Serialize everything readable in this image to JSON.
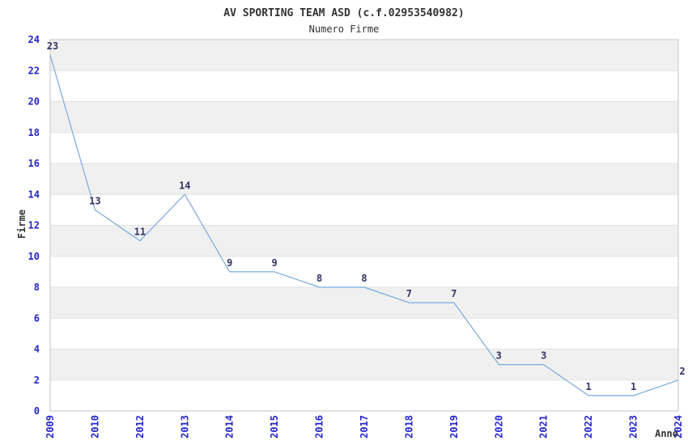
{
  "chart_data": {
    "type": "line",
    "title": "AV SPORTING TEAM ASD (c.f.02953540982)",
    "subtitle": "Numero Firme",
    "xlabel": "Anno",
    "ylabel": "Firme",
    "categories": [
      "2009",
      "2010",
      "2012",
      "2013",
      "2014",
      "2015",
      "2016",
      "2017",
      "2018",
      "2019",
      "2020",
      "2021",
      "2022",
      "2023",
      "2024"
    ],
    "values": [
      23,
      13,
      11,
      14,
      9,
      9,
      8,
      8,
      7,
      7,
      3,
      3,
      1,
      1,
      2
    ],
    "ylim": [
      0,
      24
    ],
    "ytick_step": 2,
    "yticks": [
      0,
      2,
      4,
      6,
      8,
      10,
      12,
      14,
      16,
      18,
      20,
      22,
      24
    ],
    "legend": "none",
    "grid": "alternating horizontal gray bands every 2 units, horizontal gridlines at even values",
    "data_labels_shown": true,
    "colors": {
      "line": "#7aaadd",
      "tick_label": "#2424cc",
      "data_label": "#333366",
      "band": "#f0f0f0",
      "gridline": "#e2e2e2",
      "plot_border": "#c6c6c6",
      "text": "#333333",
      "background": "#ffffff"
    }
  }
}
